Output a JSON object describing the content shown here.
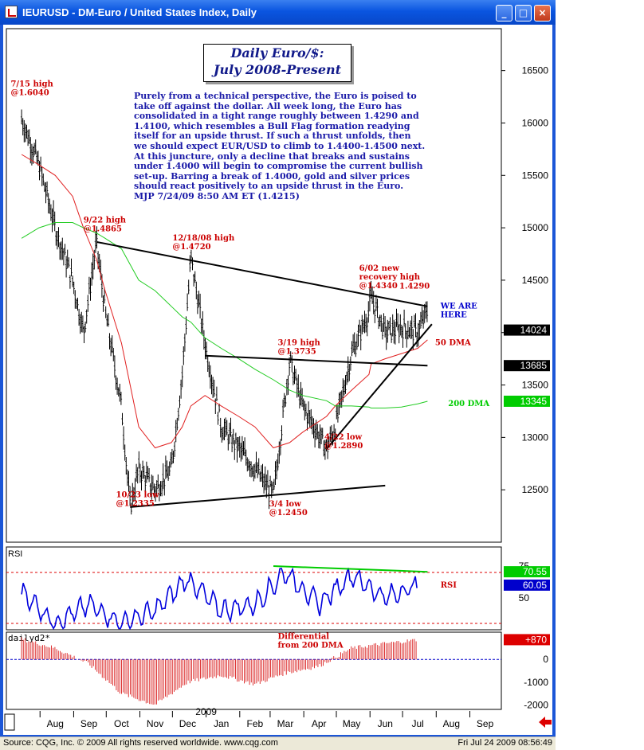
{
  "window": {
    "title": "IEURUSD - DM-Euro / United States Index, Daily",
    "buttons": [
      "_",
      "□",
      "×"
    ]
  },
  "status": {
    "left": "Source: CQG, Inc. © 2009 All rights reserved worldwide. www.cqg.com",
    "right": "Fri Jul 24 2009 08:56:49"
  },
  "headline": {
    "line1": "Daily Euro/$:",
    "line2": "July 2008-Present"
  },
  "commentary": [
    "Purely from a technical perspective, the Euro is poised to",
    "take off against the dollar. All week long, the Euro has",
    "consolidated in a tight range roughly between 1.4290 and",
    "1.4100, which resembles a Bull Flag formation readying",
    "itself for an upside thrust. If such a thrust unfolds, then",
    "we should expect EUR/USD to climb to 1.4400-1.4500 next.",
    "At this juncture, only a decline that breaks and sustains",
    "under 1.4000 will begin to compromise the current bullish",
    "set-up.  Barring a break of 1.4000, gold and silver prices",
    "should react positively to an upside thrust in the Euro.",
    "MJP  7/24/09  8:50 AM ET (1.4215)"
  ],
  "colors": {
    "price_bars": "#000000",
    "dma50": "#e02020",
    "dma200": "#22cc22",
    "annotation": "#cc0000",
    "rsi_line": "#0000dd",
    "differential": "#dd3333",
    "label_green": "#00cc00",
    "label_blue": "#0000cc",
    "label_red": "#dd0000"
  },
  "chart_data": [
    {
      "type": "line",
      "panel": "price",
      "title": "",
      "x": [
        "2008-07-15",
        "2008-07-31",
        "2008-08-15",
        "2008-08-31",
        "2008-09-10",
        "2008-09-22",
        "2008-09-30",
        "2008-10-15",
        "2008-10-23",
        "2008-10-31",
        "2008-11-15",
        "2008-11-30",
        "2008-12-10",
        "2008-12-18",
        "2008-12-31",
        "2009-01-15",
        "2009-01-31",
        "2009-02-15",
        "2009-03-04",
        "2009-03-19",
        "2009-03-31",
        "2009-04-22",
        "2009-04-30",
        "2009-05-15",
        "2009-05-31",
        "2009-06-02",
        "2009-06-15",
        "2009-06-30",
        "2009-07-15",
        "2009-07-24"
      ],
      "series": [
        {
          "name": "Price",
          "values": [
            16040,
            15600,
            15000,
            14500,
            14000,
            14865,
            14200,
            13300,
            12335,
            12700,
            12500,
            12700,
            13600,
            14720,
            13900,
            13100,
            12900,
            12700,
            12450,
            13735,
            13300,
            12890,
            13100,
            13800,
            14200,
            14340,
            14000,
            14050,
            14000,
            14215
          ]
        },
        {
          "name": "50 DMA",
          "values": [
            15700,
            15600,
            15500,
            15300,
            15000,
            14700,
            14400,
            13900,
            13500,
            13100,
            12900,
            12950,
            13100,
            13300,
            13400,
            13300,
            13200,
            13100,
            12900,
            12950,
            13050,
            13200,
            13300,
            13450,
            13600,
            13700,
            13750,
            13800,
            13850,
            13930
          ]
        },
        {
          "name": "200 DMA",
          "values": [
            14900,
            15000,
            15050,
            15050,
            15000,
            14950,
            14900,
            14800,
            14650,
            14500,
            14400,
            14250,
            14150,
            14100,
            13950,
            13850,
            13750,
            13650,
            13550,
            13450,
            13400,
            13350,
            13300,
            13300,
            13290,
            13280,
            13280,
            13290,
            13320,
            13345
          ]
        }
      ],
      "y_ticks": [
        12500,
        13000,
        13500,
        14000,
        14500,
        15000,
        15500,
        16000,
        16500
      ],
      "ylim": [
        12000,
        16900
      ],
      "x_ticks": [
        "Aug",
        "Sep",
        "Oct",
        "Nov",
        "Dec",
        "Jan",
        "Feb",
        "Mar",
        "Apr",
        "May",
        "Jun",
        "Jul",
        "Aug",
        "Sep"
      ],
      "year_label": "2009",
      "price_labels": [
        {
          "text": "14024",
          "value": 14024,
          "style": "black"
        },
        {
          "text": "13685",
          "value": 13685,
          "style": "black"
        },
        {
          "text": "13345",
          "value": 13345,
          "style": "green"
        }
      ],
      "annotations": [
        {
          "lines": [
            "7/15 high",
            "@1.6040"
          ]
        },
        {
          "lines": [
            "9/22 high",
            "@1.4865"
          ]
        },
        {
          "lines": [
            "12/18/08 high",
            "@1.4720"
          ]
        },
        {
          "lines": [
            "6/02 new",
            "recovery high",
            "@1.4340"
          ]
        },
        {
          "lines": [
            "1.4290"
          ]
        },
        {
          "lines": [
            "WE ARE",
            "HERE"
          ]
        },
        {
          "lines": [
            "3/19 high",
            "@1.3735"
          ]
        },
        {
          "lines": [
            "50 DMA"
          ]
        },
        {
          "lines": [
            "200 DMA"
          ]
        },
        {
          "lines": [
            "4/22 low",
            "@1.2890"
          ]
        },
        {
          "lines": [
            "10/23 low",
            "@1.2335"
          ]
        },
        {
          "lines": [
            "3/4 low",
            "@1.2450"
          ]
        }
      ]
    },
    {
      "type": "line",
      "panel": "rsi",
      "title": "RSI",
      "x": [
        "2008-07",
        "2008-08",
        "2008-09",
        "2008-10",
        "2008-11",
        "2008-12",
        "2009-01",
        "2009-02",
        "2009-03",
        "2009-04",
        "2009-05",
        "2009-06",
        "2009-07"
      ],
      "series": [
        {
          "name": "RSI",
          "values": [
            55,
            30,
            45,
            30,
            40,
            65,
            40,
            45,
            70,
            45,
            68,
            50,
            60.05
          ]
        }
      ],
      "ylim": [
        25,
        90
      ],
      "y_ticks": [
        50,
        75
      ],
      "price_labels": [
        {
          "text": "70.55",
          "value": 70.55,
          "style": "green"
        },
        {
          "text": "60.05",
          "value": 60.05,
          "style": "blue"
        }
      ],
      "series_label": "RSI"
    },
    {
      "type": "bar",
      "panel": "differential",
      "title": "dailyd2*",
      "annotation": [
        "Differential",
        "from 200 DMA"
      ],
      "x": [
        "2008-07",
        "2008-08",
        "2008-09",
        "2008-10",
        "2008-11",
        "2008-12",
        "2009-01",
        "2009-02",
        "2009-03",
        "2009-04",
        "2009-05",
        "2009-06",
        "2009-07"
      ],
      "series": [
        {
          "name": "Differential",
          "values": [
            900,
            500,
            -200,
            -1500,
            -2000,
            -1000,
            -700,
            -1100,
            -600,
            -300,
            500,
            700,
            870
          ]
        }
      ],
      "ylim": [
        -2200,
        1200
      ],
      "y_ticks": [
        -2000,
        -1000,
        0
      ],
      "price_labels": [
        {
          "text": "+870",
          "value": 870,
          "style": "red"
        }
      ]
    }
  ]
}
